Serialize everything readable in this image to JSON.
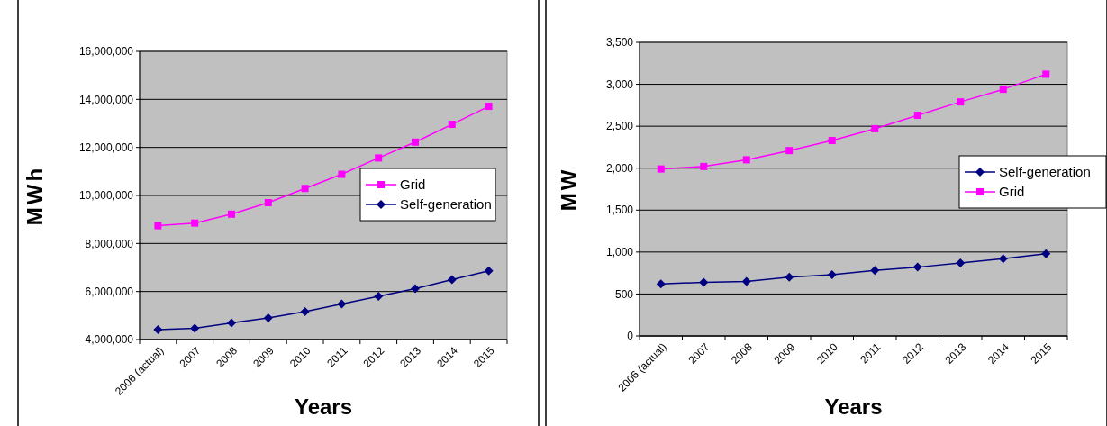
{
  "chart_data": [
    {
      "type": "line",
      "xlabel": "Years",
      "ylabel": "MWh",
      "categories": [
        "2006 (actual)",
        "2007",
        "2008",
        "2009",
        "2010",
        "2011",
        "2012",
        "2013",
        "2014",
        "2015"
      ],
      "series": [
        {
          "name": "Grid",
          "color": "#ff00ff",
          "marker": "square",
          "values": [
            8740000,
            8850000,
            9220000,
            9700000,
            10290000,
            10880000,
            11560000,
            12220000,
            12960000,
            13710000
          ]
        },
        {
          "name": "Self-generation",
          "color": "#000080",
          "marker": "diamond",
          "values": [
            4410000,
            4470000,
            4690000,
            4900000,
            5160000,
            5480000,
            5800000,
            6120000,
            6490000,
            6860000
          ]
        }
      ],
      "ylim": [
        4000000,
        16000000
      ],
      "yticks": [
        {
          "value": 4000000,
          "label": "4,000,000"
        },
        {
          "value": 6000000,
          "label": "6,000,000"
        },
        {
          "value": 8000000,
          "label": "8,000,000"
        },
        {
          "value": 10000000,
          "label": "10,000,000"
        },
        {
          "value": 12000000,
          "label": "12,000,000"
        },
        {
          "value": 14000000,
          "label": "14,000,000"
        },
        {
          "value": 16000000,
          "label": "16,000,000"
        }
      ],
      "grid": "y",
      "legend": "right"
    },
    {
      "type": "line",
      "xlabel": "Years",
      "ylabel": "MW",
      "categories": [
        "2006 (actual)",
        "2007",
        "2008",
        "2009",
        "2010",
        "2011",
        "2012",
        "2013",
        "2014",
        "2015"
      ],
      "series": [
        {
          "name": "Self-generation",
          "color": "#000080",
          "marker": "diamond",
          "values": [
            620,
            640,
            650,
            700,
            730,
            780,
            820,
            870,
            920,
            980
          ]
        },
        {
          "name": "Grid",
          "color": "#ff00ff",
          "marker": "square",
          "values": [
            1990,
            2020,
            2100,
            2210,
            2330,
            2470,
            2630,
            2790,
            2940,
            3120
          ]
        }
      ],
      "ylim": [
        0,
        3500
      ],
      "yticks": [
        0,
        500,
        {
          "value": 1000,
          "label": "1,000"
        },
        {
          "value": 1500,
          "label": "1,500"
        },
        {
          "value": 2000,
          "label": "2,000"
        },
        {
          "value": 2500,
          "label": "2,500"
        },
        {
          "value": 3000,
          "label": "3,000"
        },
        {
          "value": 3500,
          "label": "3,500"
        }
      ],
      "grid": "y",
      "legend": "right"
    }
  ]
}
